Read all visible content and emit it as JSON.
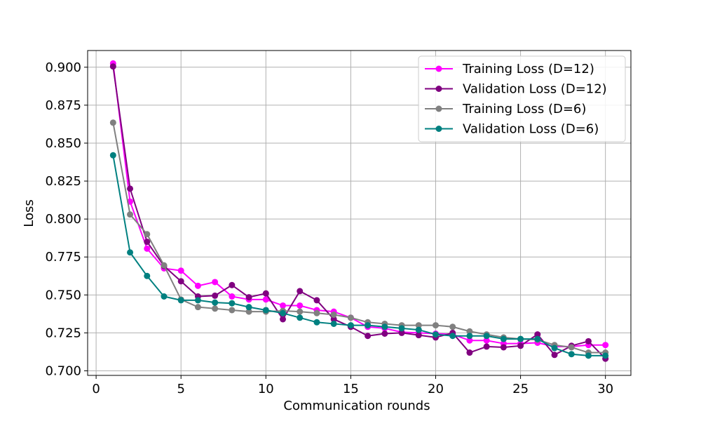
{
  "chart_data": {
    "type": "line",
    "title": "",
    "xlabel": "Communication rounds",
    "ylabel": "Loss",
    "xlim": [
      -0.5,
      31.5
    ],
    "ylim": [
      0.697,
      0.911
    ],
    "xticks": [
      0,
      5,
      10,
      15,
      20,
      25,
      30
    ],
    "yticks": [
      0.7,
      0.725,
      0.75,
      0.775,
      0.8,
      0.825,
      0.85,
      0.875,
      0.9
    ],
    "ytick_labels": [
      "0.700",
      "0.725",
      "0.750",
      "0.775",
      "0.800",
      "0.825",
      "0.850",
      "0.875",
      "0.900"
    ],
    "grid": true,
    "legend_position": "top-right",
    "x": [
      1,
      2,
      3,
      4,
      5,
      6,
      7,
      8,
      9,
      10,
      11,
      12,
      13,
      14,
      15,
      16,
      17,
      18,
      19,
      20,
      21,
      22,
      23,
      24,
      25,
      26,
      27,
      28,
      29,
      30
    ],
    "series": [
      {
        "name": "Training Loss (D=12)",
        "color": "#ff00ff",
        "values": [
          0.9025,
          0.8115,
          0.7805,
          0.7675,
          0.766,
          0.756,
          0.7585,
          0.749,
          0.747,
          0.747,
          0.743,
          0.743,
          0.74,
          0.739,
          0.735,
          0.729,
          0.728,
          0.7255,
          0.725,
          0.7245,
          0.724,
          0.72,
          0.72,
          0.718,
          0.718,
          0.7185,
          0.716,
          0.716,
          0.717,
          0.717
        ]
      },
      {
        "name": "Validation Loss (D=12)",
        "color": "#800080",
        "values": [
          0.9005,
          0.82,
          0.785,
          0.769,
          0.759,
          0.749,
          0.7495,
          0.7565,
          0.7485,
          0.751,
          0.734,
          0.7525,
          0.7465,
          0.734,
          0.729,
          0.723,
          0.7245,
          0.725,
          0.7235,
          0.722,
          0.725,
          0.712,
          0.716,
          0.7155,
          0.7165,
          0.724,
          0.7105,
          0.7165,
          0.7195,
          0.708
        ]
      },
      {
        "name": "Training Loss (D=6)",
        "color": "#808080",
        "values": [
          0.8635,
          0.803,
          0.79,
          0.7695,
          0.747,
          0.742,
          0.741,
          0.74,
          0.739,
          0.739,
          0.7395,
          0.739,
          0.738,
          0.737,
          0.735,
          0.732,
          0.731,
          0.73,
          0.73,
          0.73,
          0.729,
          0.726,
          0.724,
          0.722,
          0.721,
          0.7205,
          0.717,
          0.7155,
          0.712,
          0.712
        ]
      },
      {
        "name": "Validation Loss (D=6)",
        "color": "#008080",
        "values": [
          0.842,
          0.778,
          0.7625,
          0.749,
          0.7465,
          0.7465,
          0.745,
          0.7445,
          0.742,
          0.74,
          0.738,
          0.735,
          0.732,
          0.731,
          0.73,
          0.73,
          0.729,
          0.728,
          0.727,
          0.724,
          0.723,
          0.723,
          0.723,
          0.721,
          0.721,
          0.721,
          0.715,
          0.711,
          0.71,
          0.71
        ]
      }
    ]
  }
}
